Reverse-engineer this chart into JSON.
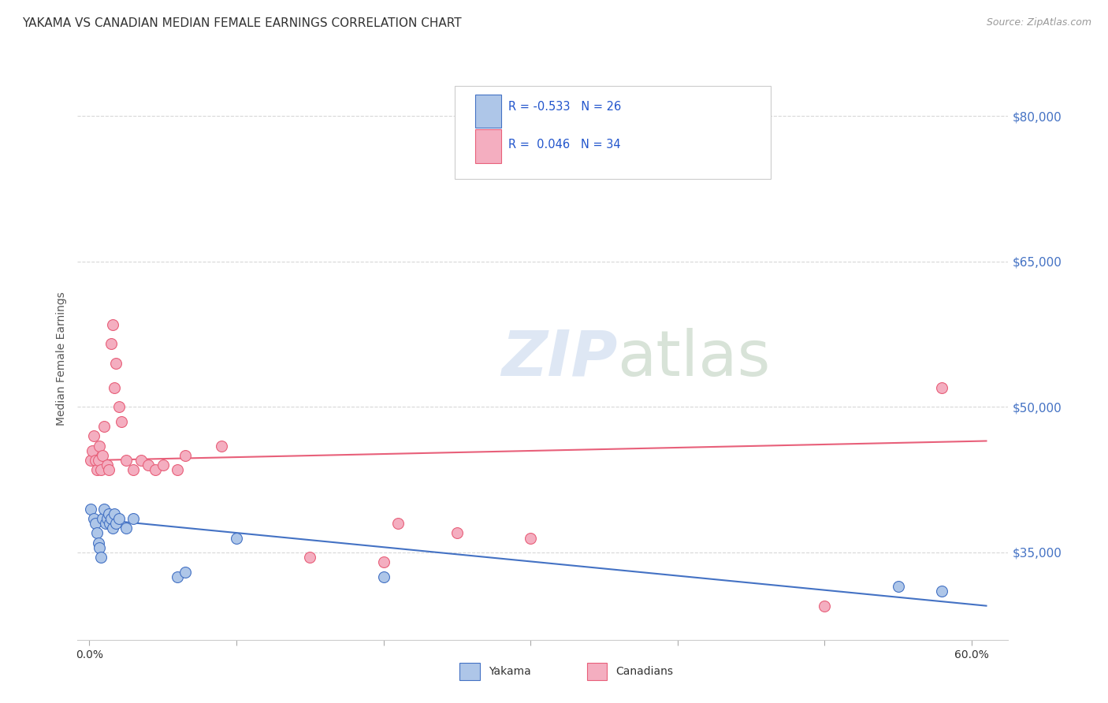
{
  "title": "YAKAMA VS CANADIAN MEDIAN FEMALE EARNINGS CORRELATION CHART",
  "source": "Source: ZipAtlas.com",
  "ylabel": "Median Female Earnings",
  "ytick_labels": [
    "$35,000",
    "$50,000",
    "$65,000",
    "$80,000"
  ],
  "ytick_values": [
    35000,
    50000,
    65000,
    80000
  ],
  "ymin": 26000,
  "ymax": 84000,
  "xmin": -0.008,
  "xmax": 0.625,
  "legend_r_yakama": "-0.533",
  "legend_n_yakama": "26",
  "legend_r_canadians": "0.046",
  "legend_n_canadians": "34",
  "yakama_color": "#aec6e8",
  "canadians_color": "#f4aec0",
  "yakama_line_color": "#4472c4",
  "canadians_line_color": "#e8607a",
  "legend_text_color": "#2255cc",
  "yakama_scatter": [
    [
      0.001,
      39500
    ],
    [
      0.003,
      38500
    ],
    [
      0.004,
      38000
    ],
    [
      0.005,
      37000
    ],
    [
      0.006,
      36000
    ],
    [
      0.007,
      35500
    ],
    [
      0.008,
      34500
    ],
    [
      0.009,
      38500
    ],
    [
      0.01,
      39500
    ],
    [
      0.011,
      38000
    ],
    [
      0.012,
      38500
    ],
    [
      0.013,
      39000
    ],
    [
      0.014,
      38000
    ],
    [
      0.015,
      38500
    ],
    [
      0.016,
      37500
    ],
    [
      0.017,
      39000
    ],
    [
      0.018,
      38000
    ],
    [
      0.02,
      38500
    ],
    [
      0.025,
      37500
    ],
    [
      0.03,
      38500
    ],
    [
      0.06,
      32500
    ],
    [
      0.065,
      33000
    ],
    [
      0.1,
      36500
    ],
    [
      0.2,
      32500
    ],
    [
      0.55,
      31500
    ],
    [
      0.58,
      31000
    ]
  ],
  "canadians_scatter": [
    [
      0.001,
      44500
    ],
    [
      0.002,
      45500
    ],
    [
      0.003,
      47000
    ],
    [
      0.004,
      44500
    ],
    [
      0.005,
      43500
    ],
    [
      0.006,
      44500
    ],
    [
      0.007,
      46000
    ],
    [
      0.008,
      43500
    ],
    [
      0.009,
      45000
    ],
    [
      0.01,
      48000
    ],
    [
      0.012,
      44000
    ],
    [
      0.013,
      43500
    ],
    [
      0.015,
      56500
    ],
    [
      0.016,
      58500
    ],
    [
      0.017,
      52000
    ],
    [
      0.018,
      54500
    ],
    [
      0.02,
      50000
    ],
    [
      0.022,
      48500
    ],
    [
      0.025,
      44500
    ],
    [
      0.03,
      43500
    ],
    [
      0.035,
      44500
    ],
    [
      0.04,
      44000
    ],
    [
      0.045,
      43500
    ],
    [
      0.05,
      44000
    ],
    [
      0.06,
      43500
    ],
    [
      0.065,
      45000
    ],
    [
      0.09,
      46000
    ],
    [
      0.15,
      34500
    ],
    [
      0.2,
      34000
    ],
    [
      0.21,
      38000
    ],
    [
      0.25,
      37000
    ],
    [
      0.3,
      36500
    ],
    [
      0.5,
      29500
    ],
    [
      0.58,
      52000
    ]
  ],
  "yakama_trend_x": [
    0.0,
    0.61
  ],
  "yakama_trend_y": [
    38500,
    29500
  ],
  "canadians_trend_x": [
    0.0,
    0.61
  ],
  "canadians_trend_y": [
    44500,
    46500
  ],
  "background_color": "#ffffff",
  "grid_color": "#d8d8d8",
  "title_fontsize": 11,
  "axis_label_fontsize": 10,
  "tick_fontsize": 10,
  "right_tick_color": "#4472c4"
}
